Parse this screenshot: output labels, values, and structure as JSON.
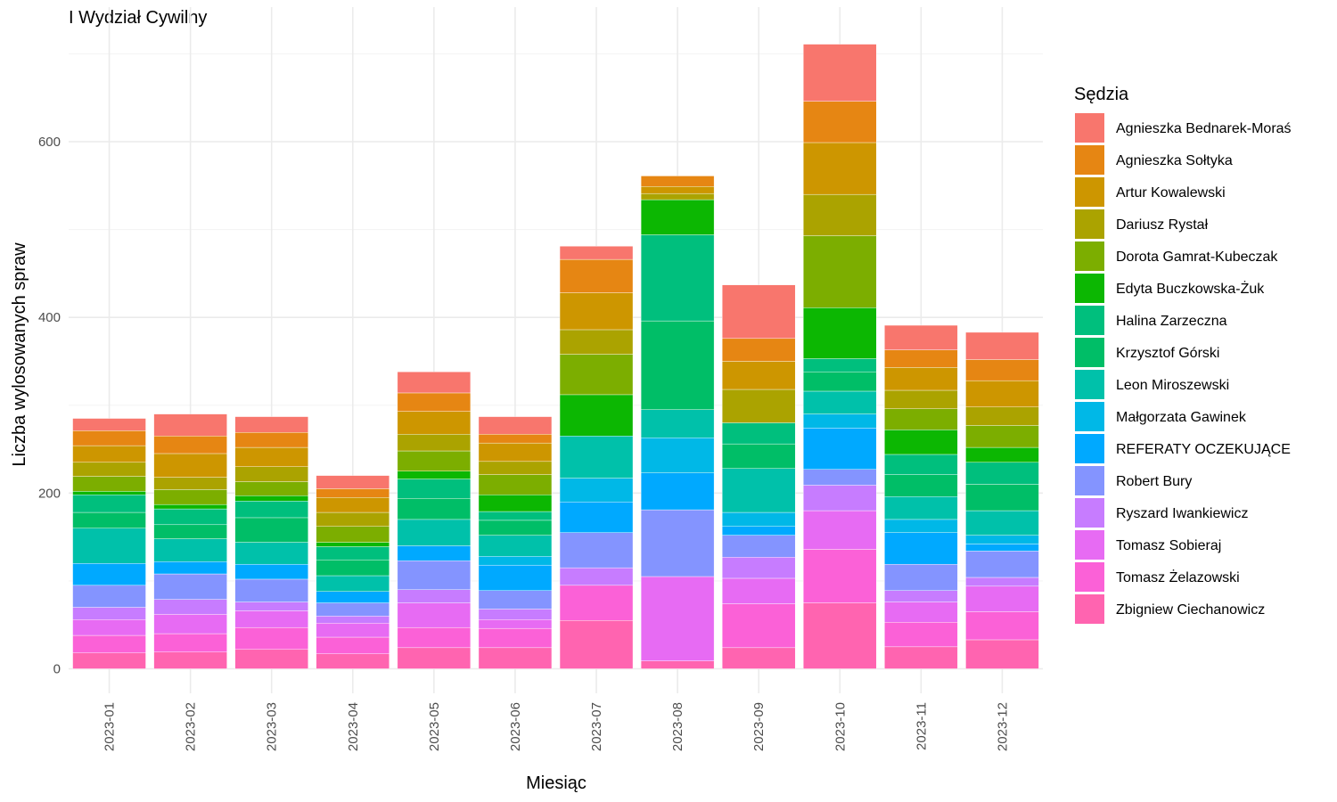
{
  "chart_data": {
    "type": "bar",
    "stacked": true,
    "title": "I Wydział Cywilny",
    "xlabel": "Miesiąc",
    "ylabel": "Liczba wylosowanych spraw",
    "ylim": [
      0,
      715
    ],
    "y_ticks": [
      0,
      200,
      400,
      600
    ],
    "grid": true,
    "legend_position": "right",
    "legend_title": "Sędzia",
    "categories": [
      "2023-01",
      "2023-02",
      "2023-03",
      "2023-04",
      "2023-05",
      "2023-06",
      "2023-07",
      "2023-08",
      "2023-09",
      "2023-10",
      "2023-11",
      "2023-12"
    ],
    "series": [
      {
        "name": "Zbigniew Ciechanowicz",
        "color": "#FF64B0",
        "values": [
          18,
          19,
          22,
          17,
          24,
          24,
          55,
          9,
          24,
          75,
          25,
          33
        ]
      },
      {
        "name": "Tomasz Żelazowski",
        "color": "#FB61D7",
        "values": [
          20,
          21,
          25,
          19,
          23,
          22,
          40,
          0,
          50,
          61,
          28,
          32
        ]
      },
      {
        "name": "Tomasz Sobieraj",
        "color": "#E76BF3",
        "values": [
          18,
          22,
          19,
          16,
          28,
          10,
          0,
          96,
          29,
          44,
          23,
          29
        ]
      },
      {
        "name": "Ryszard Iwankiewicz",
        "color": "#C77CFF",
        "values": [
          14,
          17,
          10,
          8,
          15,
          12,
          20,
          0,
          24,
          29,
          13,
          10
        ]
      },
      {
        "name": "Robert Bury",
        "color": "#8494FF",
        "values": [
          25,
          29,
          26,
          15,
          33,
          21,
          40,
          76,
          25,
          18,
          30,
          30
        ]
      },
      {
        "name": "REFERATY OCZEKUJĄCE",
        "color": "#00A9FF",
        "values": [
          25,
          14,
          17,
          13,
          17,
          29,
          35,
          42,
          10,
          47,
          36,
          8
        ]
      },
      {
        "name": "Małgorzata Gawinek",
        "color": "#00B8E7",
        "values": [
          0,
          0,
          0,
          0,
          0,
          10,
          27,
          40,
          16,
          16,
          15,
          10
        ]
      },
      {
        "name": "Leon Miroszewski",
        "color": "#00C1AA",
        "values": [
          40,
          26,
          25,
          18,
          30,
          24,
          48,
          32,
          50,
          26,
          26,
          28
        ]
      },
      {
        "name": "Krzysztof Górski",
        "color": "#00BE67",
        "values": [
          18,
          16,
          28,
          18,
          24,
          17,
          0,
          101,
          28,
          22,
          25,
          30
        ]
      },
      {
        "name": "Halina Zarzeczna",
        "color": "#00BF7D",
        "values": [
          20,
          18,
          19,
          15,
          22,
          10,
          0,
          98,
          24,
          15,
          23,
          25
        ]
      },
      {
        "name": "Edyta Buczkowska-Żuk",
        "color": "#0CB702",
        "values": [
          4,
          5,
          6,
          5,
          9,
          19,
          47,
          40,
          0,
          58,
          28,
          17
        ]
      },
      {
        "name": "Dorota Gamrat-Kubeczak",
        "color": "#7CAE00",
        "values": [
          17,
          17,
          16,
          18,
          23,
          23,
          46,
          0,
          0,
          82,
          24,
          25
        ]
      },
      {
        "name": "Dariusz Rystał",
        "color": "#ABA300",
        "values": [
          16,
          14,
          17,
          16,
          19,
          15,
          28,
          7,
          38,
          47,
          21,
          21
        ]
      },
      {
        "name": "Artur Kowalewski",
        "color": "#CD9600",
        "values": [
          19,
          27,
          22,
          17,
          26,
          21,
          42,
          8,
          32,
          59,
          26,
          30
        ]
      },
      {
        "name": "Agnieszka Sołtyka",
        "color": "#E68613",
        "values": [
          17,
          20,
          17,
          10,
          21,
          10,
          38,
          12,
          26,
          47,
          20,
          24
        ]
      },
      {
        "name": "Agnieszka Bednarek-Moraś",
        "color": "#F8766D",
        "values": [
          14,
          25,
          18,
          15,
          24,
          20,
          15,
          0,
          61,
          65,
          28,
          31
        ]
      }
    ]
  }
}
